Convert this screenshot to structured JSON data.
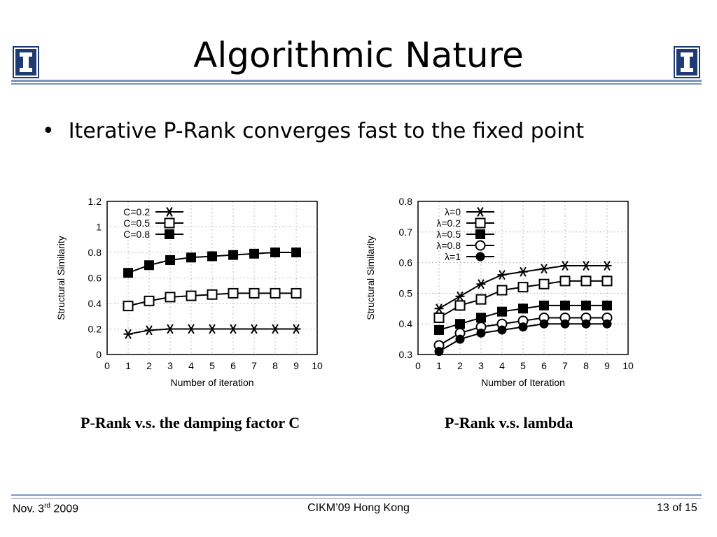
{
  "slide": {
    "title": "Algorithmic Nature",
    "bullet": "Iterative P-Rank converges fast to the fixed point",
    "logo_icon": "illinois-block-i-icon",
    "bullet_icon": "bullet-dot-icon",
    "accent_color": "#1f3b73",
    "rule_color": "#7a96bf"
  },
  "captions": {
    "left": "P-Rank v.s. the damping factor C",
    "right": "P-Rank v.s. lambda"
  },
  "footer": {
    "date_prefix": "Nov. 3",
    "date_sup": "rd",
    "date_year": " 2009",
    "venue": "CIKM’09 Hong Kong",
    "page": "13",
    "of": " of ",
    "total": "15"
  },
  "chart_data": [
    {
      "type": "line",
      "xlabel": "Number of iteration",
      "ylabel": "Structural Similarity",
      "xlim": [
        0,
        10
      ],
      "ylim": [
        0,
        1.2
      ],
      "xticks": [
        "0",
        "1",
        "2",
        "3",
        "4",
        "5",
        "6",
        "7",
        "8",
        "9",
        "10"
      ],
      "yticks": [
        "0",
        "0.2",
        "0.4",
        "0.6",
        "0.8",
        "1",
        "1.2"
      ],
      "x": [
        1,
        2,
        3,
        4,
        5,
        6,
        7,
        8,
        9
      ],
      "grid": true,
      "legend_position": "top-left",
      "series": [
        {
          "name": "C=0.2",
          "marker": "star",
          "values": [
            0.16,
            0.19,
            0.2,
            0.2,
            0.2,
            0.2,
            0.2,
            0.2,
            0.2
          ]
        },
        {
          "name": "C=0.5",
          "marker": "open-square",
          "values": [
            0.38,
            0.42,
            0.45,
            0.46,
            0.47,
            0.48,
            0.48,
            0.48,
            0.48
          ]
        },
        {
          "name": "C=0.8",
          "marker": "filled-square",
          "values": [
            0.64,
            0.7,
            0.74,
            0.76,
            0.77,
            0.78,
            0.79,
            0.8,
            0.8
          ]
        }
      ]
    },
    {
      "type": "line",
      "xlabel": "Number of Iteration",
      "ylabel": "Structural Similarity",
      "xlim": [
        0,
        10
      ],
      "ylim": [
        0.3,
        0.8
      ],
      "xticks": [
        "0",
        "1",
        "2",
        "3",
        "4",
        "5",
        "6",
        "7",
        "8",
        "9",
        "10"
      ],
      "yticks": [
        "0.3",
        "0.4",
        "0.5",
        "0.6",
        "0.7",
        "0.8"
      ],
      "x": [
        1,
        2,
        3,
        4,
        5,
        6,
        7,
        8,
        9
      ],
      "grid": true,
      "legend_position": "top-left",
      "series": [
        {
          "name": "λ=0",
          "marker": "star",
          "values": [
            0.45,
            0.49,
            0.53,
            0.56,
            0.57,
            0.58,
            0.59,
            0.59,
            0.59
          ]
        },
        {
          "name": "λ=0.2",
          "marker": "open-square",
          "values": [
            0.42,
            0.46,
            0.48,
            0.51,
            0.52,
            0.53,
            0.54,
            0.54,
            0.54
          ]
        },
        {
          "name": "λ=0.5",
          "marker": "filled-square",
          "values": [
            0.38,
            0.4,
            0.42,
            0.44,
            0.45,
            0.46,
            0.46,
            0.46,
            0.46
          ]
        },
        {
          "name": "λ=0.8",
          "marker": "open-circle",
          "values": [
            0.33,
            0.37,
            0.39,
            0.4,
            0.41,
            0.42,
            0.42,
            0.42,
            0.42
          ]
        },
        {
          "name": "λ=1",
          "marker": "filled-circle",
          "values": [
            0.31,
            0.35,
            0.37,
            0.38,
            0.39,
            0.4,
            0.4,
            0.4,
            0.4
          ]
        }
      ]
    }
  ]
}
